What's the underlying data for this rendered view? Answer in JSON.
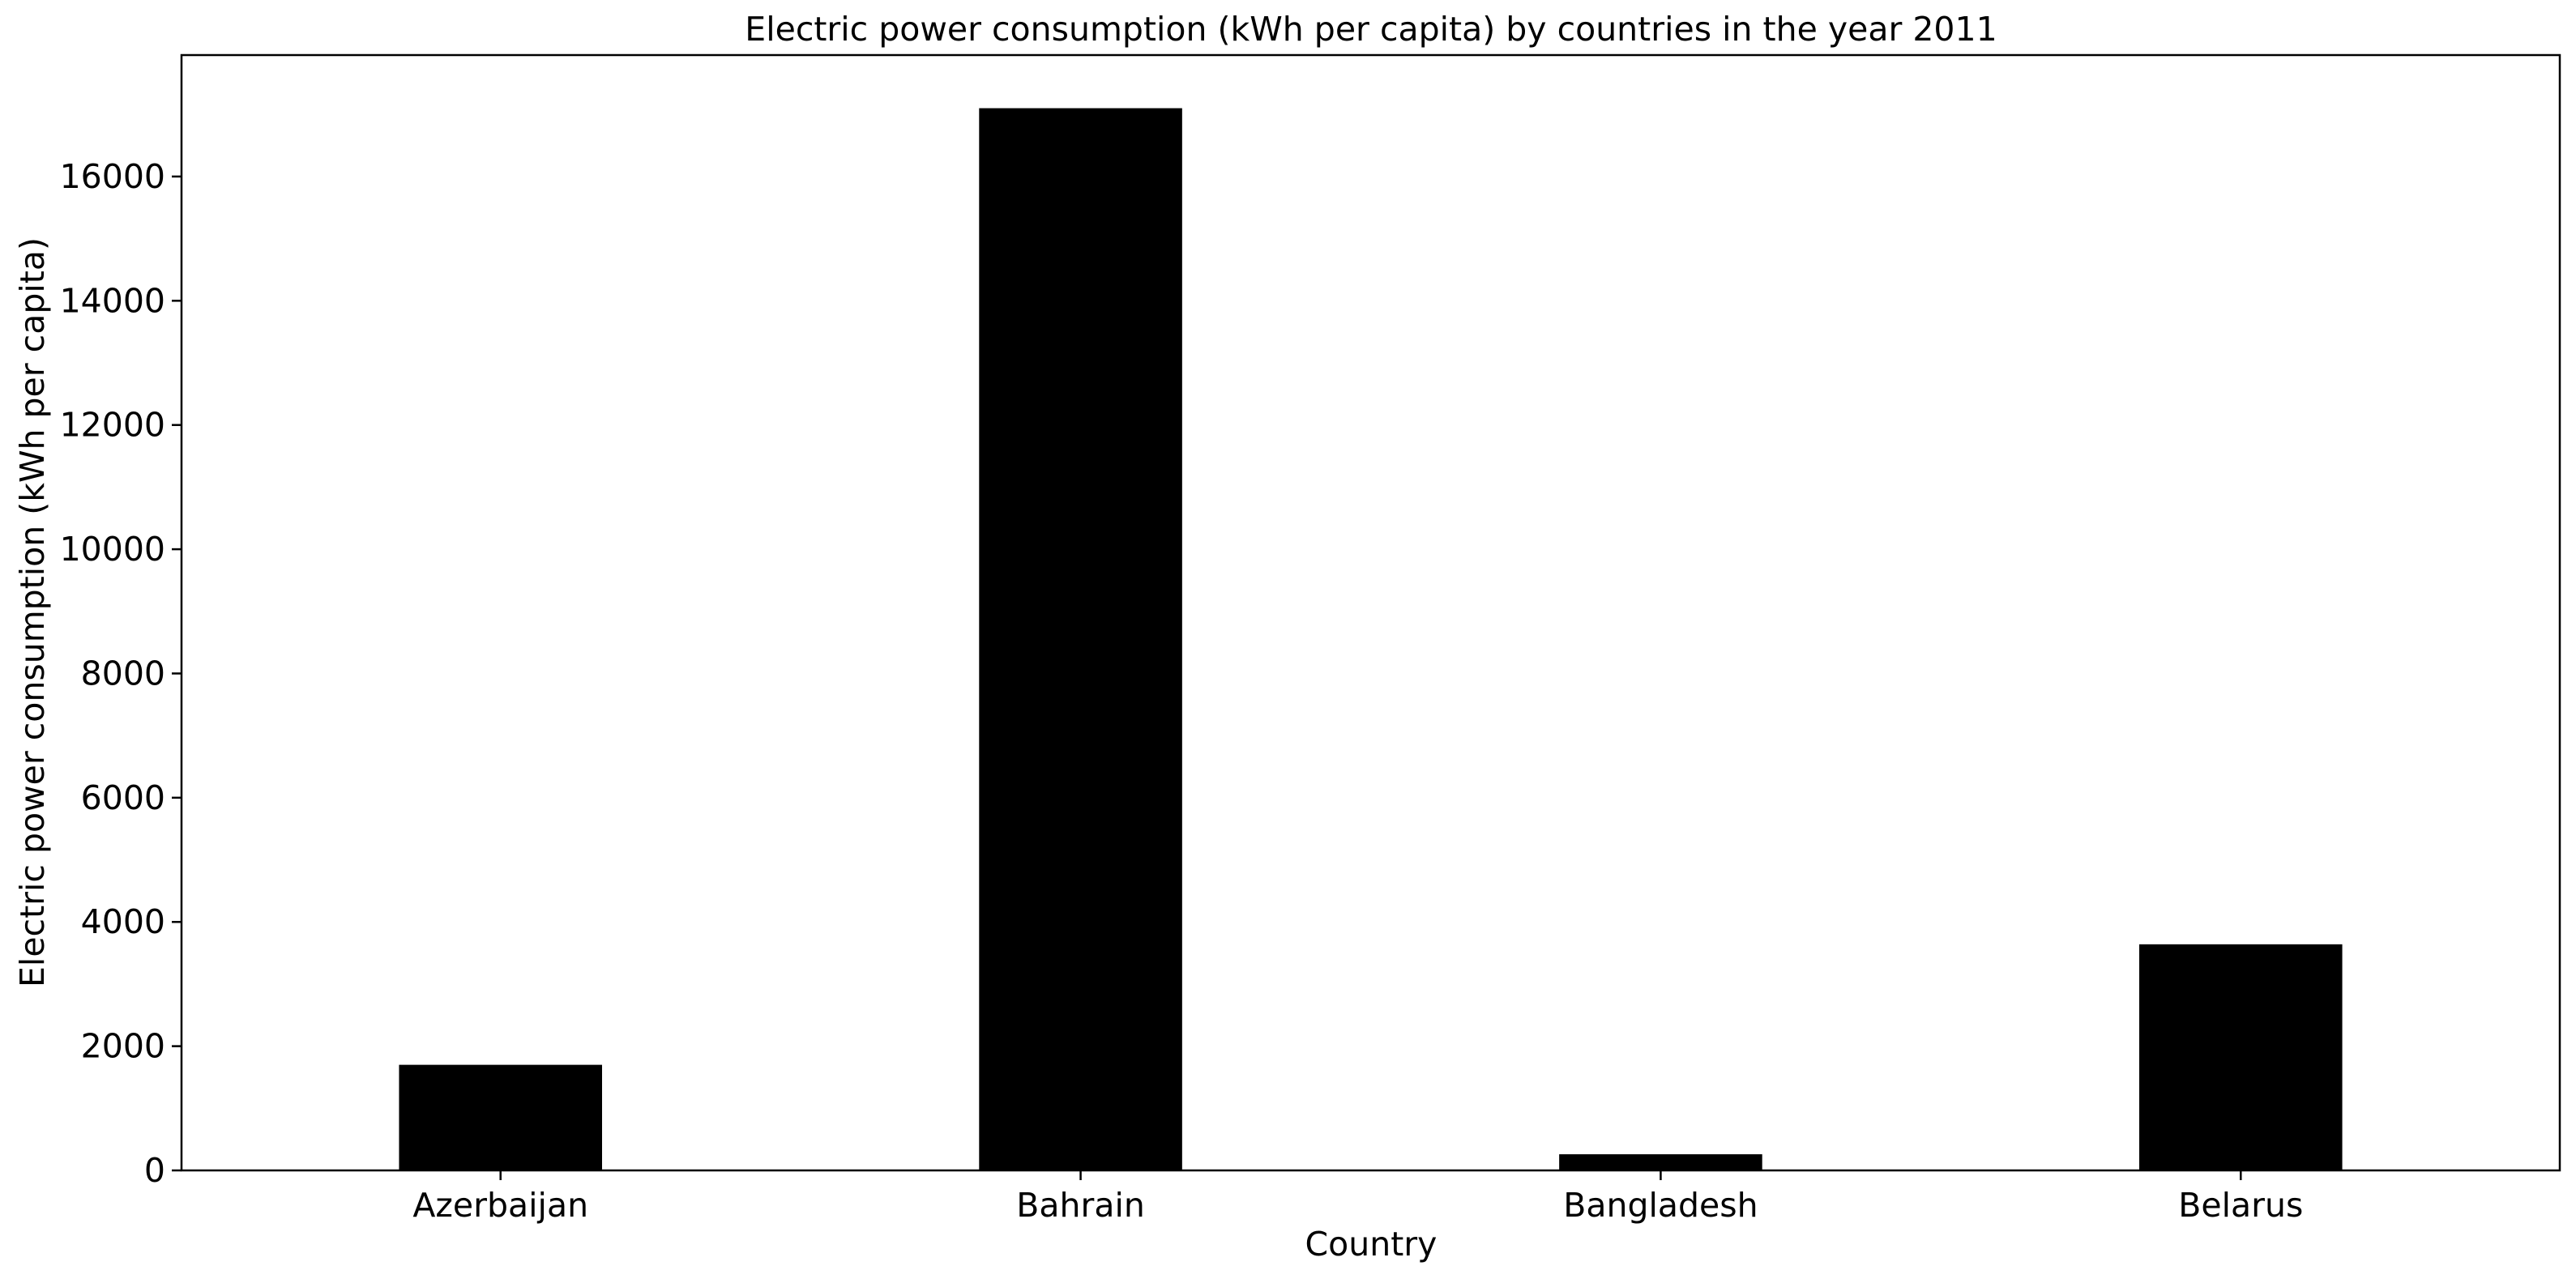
{
  "chart_data": {
    "type": "bar",
    "title": "Electric power consumption (kWh per capita) by countries in the year 2011",
    "xlabel": "Country",
    "ylabel": "Electric power consumption (kWh per capita)",
    "categories": [
      "Azerbaijan",
      "Bahrain",
      "Bangladesh",
      "Belarus"
    ],
    "values": [
      1700,
      17100,
      260,
      3640
    ],
    "ylim": [
      0,
      17955
    ],
    "yticks": [
      0,
      2000,
      4000,
      6000,
      8000,
      10000,
      12000,
      14000,
      16000
    ],
    "grid": false,
    "legend": "none",
    "bar_color": "#000000"
  }
}
